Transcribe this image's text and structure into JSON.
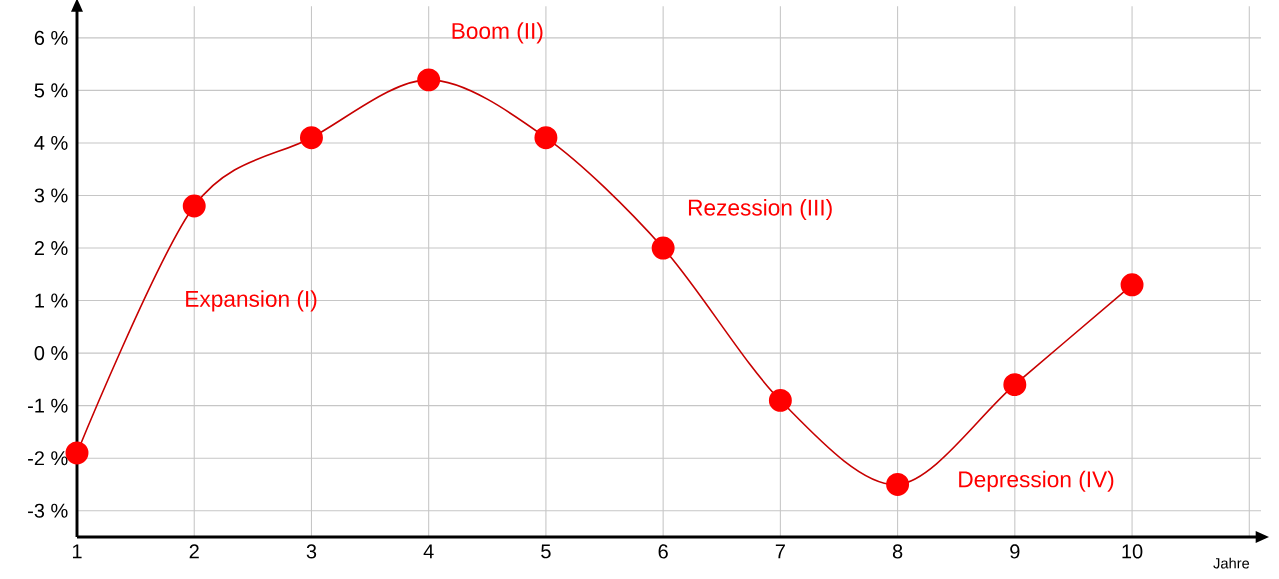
{
  "chart_data": {
    "type": "line",
    "xlabel": "Jahre",
    "x": [
      1,
      2,
      3,
      4,
      5,
      6,
      7,
      8,
      9,
      10
    ],
    "series": [
      {
        "color": "#ff0000",
        "values": [
          -1.9,
          2.8,
          4.1,
          5.2,
          4.1,
          2.0,
          -0.9,
          -2.5,
          -0.6,
          1.3
        ]
      }
    ],
    "marker": "circle",
    "grid": true,
    "xlim": [
      1,
      11.1
    ],
    "ylim": [
      -3.5,
      6.6
    ],
    "xticks": [
      1,
      2,
      3,
      4,
      5,
      6,
      7,
      8,
      9,
      10,
      {
        "value": 11,
        "label": null
      }
    ],
    "yticks": [
      {
        "value": -3,
        "label": "-3 %"
      },
      {
        "value": -2,
        "label": "-2 %"
      },
      {
        "value": -1,
        "label": "-1 %"
      },
      {
        "value": 0,
        "label": "0 %"
      },
      {
        "value": 1,
        "label": "1 %"
      },
      {
        "value": 2,
        "label": "2 %"
      },
      {
        "value": 3,
        "label": "3 %"
      },
      {
        "value": 4,
        "label": "4 %"
      },
      {
        "value": 5,
        "label": "5 %"
      },
      {
        "value": 6,
        "label": "6 %"
      }
    ],
    "annotations": [
      "Expansion (I)",
      "Boom (II)",
      "Rezession (III)",
      "Depression (IV)"
    ]
  }
}
